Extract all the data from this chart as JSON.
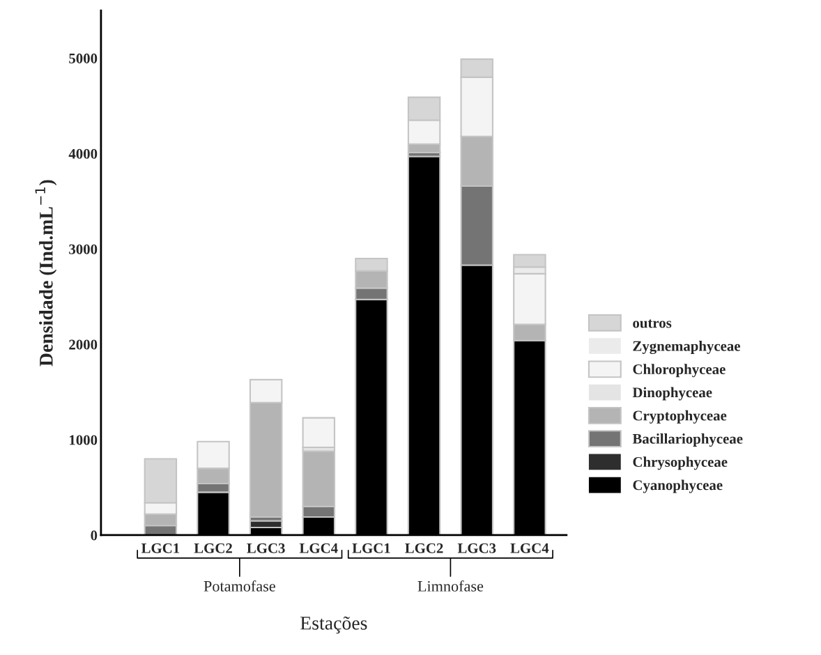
{
  "chart_data": {
    "type": "bar",
    "stacked": true,
    "xlabel": "Estações",
    "ylabel": "Densidade (Ind.mL$^{−1}$)",
    "categories": [
      "LGC1",
      "LGC2",
      "LGC3",
      "LGC4",
      "LGC1",
      "LGC2",
      "LGC3",
      "LGC4"
    ],
    "series": [
      {
        "name": "Cyanophyceae",
        "color": "#000000",
        "values": [
          0,
          450,
          80,
          190,
          2470,
          3970,
          2830,
          2040
        ]
      },
      {
        "name": "Chrysophyceae",
        "color": "#2e2e2e",
        "values": [
          0,
          0,
          70,
          0,
          0,
          0,
          0,
          0
        ]
      },
      {
        "name": "Bacillariophyceae",
        "color": "#747474",
        "values": [
          100,
          90,
          40,
          110,
          120,
          40,
          830,
          0
        ]
      },
      {
        "name": "Cryptophyceae",
        "color": "#b4b4b4",
        "values": [
          120,
          160,
          1200,
          580,
          180,
          90,
          520,
          170
        ]
      },
      {
        "name": "Dinophyceae",
        "color": "#e4e4e4",
        "values": [
          0,
          0,
          0,
          40,
          0,
          0,
          0,
          0
        ]
      },
      {
        "name": "Chlorophyceae",
        "color": "#f4f4f4",
        "values": [
          120,
          280,
          240,
          310,
          0,
          250,
          620,
          530
        ]
      },
      {
        "name": "Zygnemaphyceae",
        "color": "#ebebeb",
        "values": [
          0,
          0,
          0,
          0,
          0,
          0,
          0,
          70
        ]
      },
      {
        "name": "outros",
        "color": "#d6d6d6",
        "values": [
          460,
          0,
          0,
          0,
          130,
          240,
          190,
          130
        ]
      }
    ],
    "ylim": [
      0,
      5500
    ],
    "yticks": [
      0,
      1000,
      2000,
      3000,
      4000,
      5000
    ],
    "grid": false,
    "legend": "right",
    "annotations": [
      "Potamofase",
      "Limnofase"
    ]
  }
}
